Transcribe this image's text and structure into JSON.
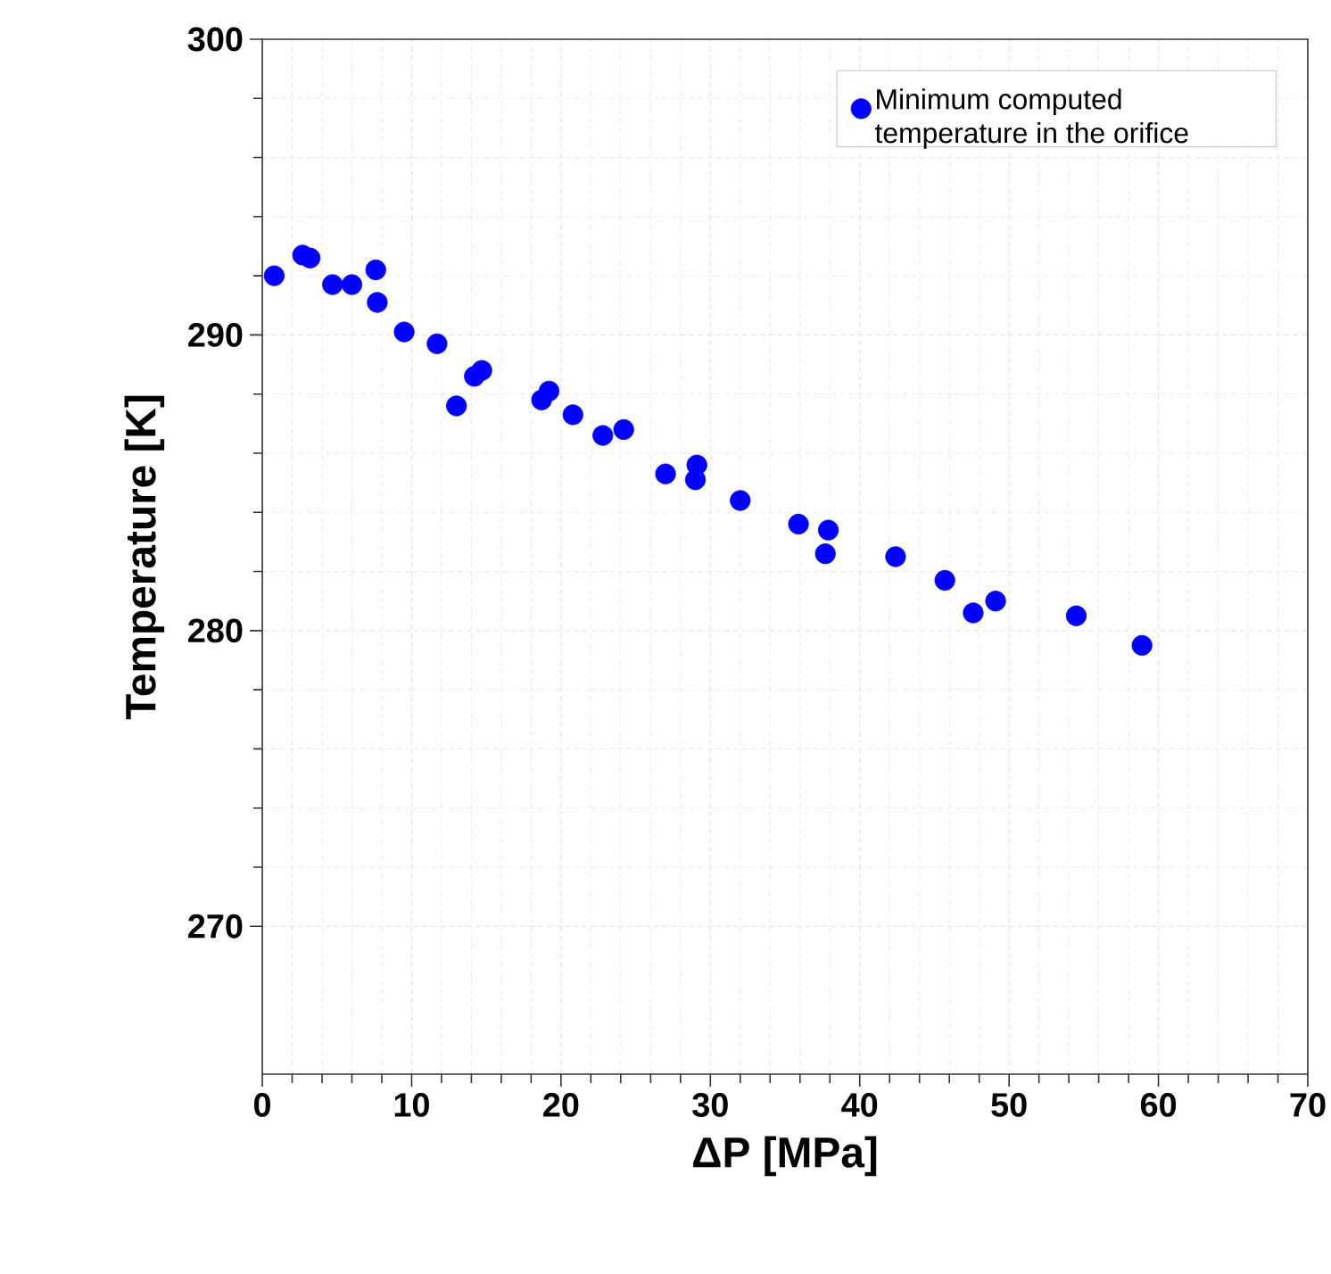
{
  "chart_data": {
    "type": "scatter",
    "xlabel": "ΔP [MPa]",
    "ylabel": "Temperature [K]",
    "xlim": [
      0,
      70
    ],
    "ylim": [
      265,
      300
    ],
    "xticks": [
      0,
      10,
      20,
      30,
      40,
      50,
      60,
      70
    ],
    "yticks": [
      270,
      280,
      290,
      300
    ],
    "grid": true,
    "legend": "top right",
    "marker": "circle",
    "series": [
      {
        "name": "Minimum computed temperature in the orifice",
        "color": "#0000ff",
        "x": [
          0.8,
          2.7,
          3.2,
          4.7,
          6.0,
          7.6,
          7.7,
          9.5,
          11.7,
          13.0,
          14.2,
          14.7,
          18.7,
          19.2,
          20.8,
          22.8,
          24.2,
          27.0,
          29.1,
          29.0,
          32.0,
          35.9,
          37.9,
          37.7,
          42.4,
          45.7,
          47.6,
          49.1,
          54.5,
          58.9
        ],
        "values": [
          292.0,
          292.7,
          292.6,
          291.7,
          291.7,
          292.2,
          291.1,
          290.1,
          289.7,
          287.6,
          288.6,
          288.8,
          287.8,
          288.1,
          287.3,
          286.6,
          286.8,
          285.3,
          285.6,
          285.1,
          284.4,
          283.6,
          283.4,
          282.6,
          282.5,
          281.7,
          280.6,
          281.0,
          280.5,
          279.5
        ]
      }
    ]
  }
}
